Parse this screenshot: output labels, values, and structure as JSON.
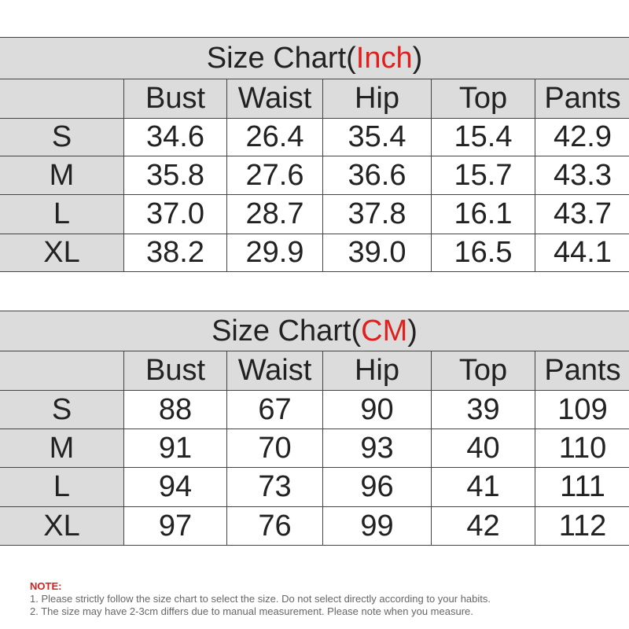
{
  "tables": [
    {
      "title": {
        "prefix": "Size Chart(",
        "unit": "Inch",
        "suffix": ")"
      },
      "columns": [
        "Bust",
        "Waist",
        "Hip",
        "Top",
        "Pants"
      ],
      "rows": [
        [
          "S",
          "34.6",
          "26.4",
          "35.4",
          "15.4",
          "42.9"
        ],
        [
          "M",
          "35.8",
          "27.6",
          "36.6",
          "15.7",
          "43.3"
        ],
        [
          "L",
          "37.0",
          "28.7",
          "37.8",
          "16.1",
          "43.7"
        ],
        [
          "XL",
          "38.2",
          "29.9",
          "39.0",
          "16.5",
          "44.1"
        ]
      ]
    },
    {
      "title": {
        "prefix": "Size Chart(",
        "unit": "CM",
        "suffix": ")"
      },
      "columns": [
        "Bust",
        "Waist",
        "Hip",
        "Top",
        "Pants"
      ],
      "rows": [
        [
          "S",
          "88",
          "67",
          "90",
          "39",
          "109"
        ],
        [
          "M",
          "91",
          "70",
          "93",
          "40",
          "110"
        ],
        [
          "L",
          "94",
          "73",
          "96",
          "41",
          "111"
        ],
        [
          "XL",
          "97",
          "76",
          "99",
          "42",
          "112"
        ]
      ]
    }
  ],
  "note": {
    "label": "NOTE:",
    "lines": [
      "1. Please strictly follow the size chart  to select the size. Do not select directly according to your habits.",
      "2. The size may have 2-3cm differs due to manual measurement. Please note when you measure."
    ]
  }
}
